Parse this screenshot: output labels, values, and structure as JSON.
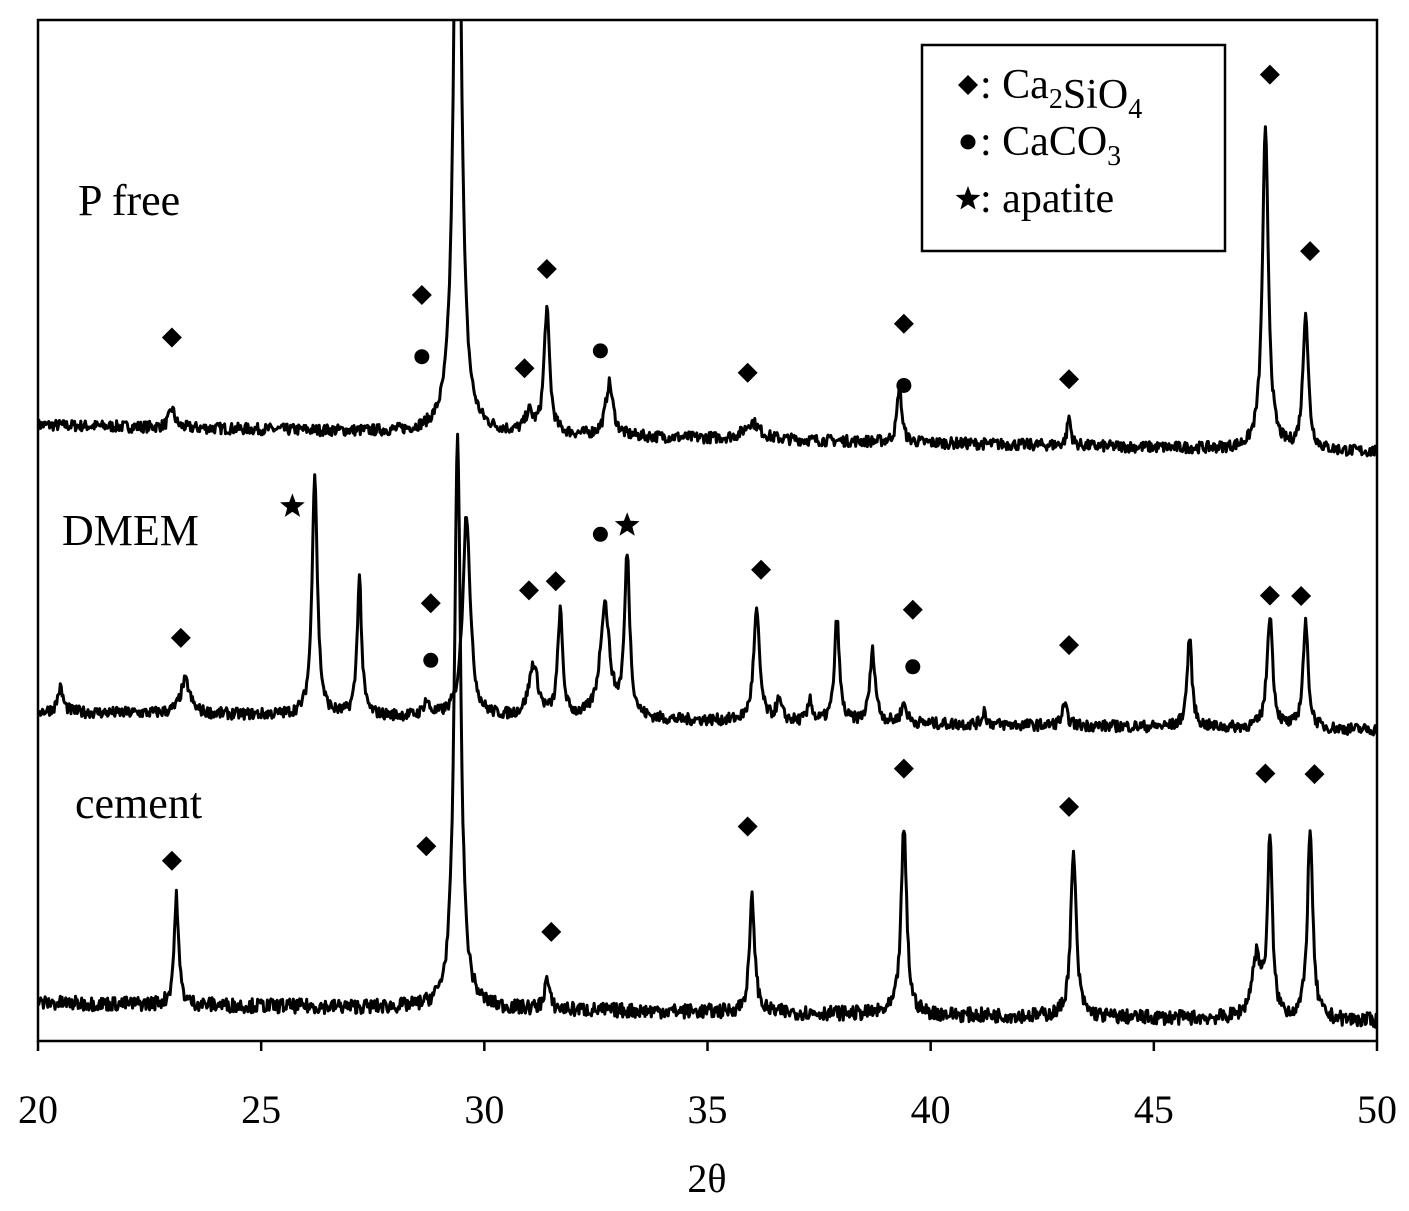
{
  "chart_data": {
    "type": "line",
    "title": "",
    "xlabel": "2θ",
    "ylabel": "",
    "xlim": [
      20,
      50
    ],
    "grid": false,
    "x_ticks": [
      "20",
      "25",
      "30",
      "35",
      "40",
      "45",
      "50"
    ],
    "legend": {
      "placement": "top-right",
      "entries": [
        {
          "marker": "diamond",
          "prefix": ": ",
          "name": "Ca",
          "sub1": "2",
          "name2": "SiO",
          "sub2": "4"
        },
        {
          "marker": "circle",
          "prefix": ": ",
          "name": "CaCO",
          "sub1": "3",
          "name2": "",
          "sub2": ""
        },
        {
          "marker": "star",
          "prefix": ": ",
          "name": "apatite",
          "sub1": "",
          "name2": "",
          "sub2": ""
        }
      ]
    },
    "series": [
      {
        "name": "P free",
        "peaks": [
          {
            "x": 23.0,
            "h": 0.2,
            "w": 0.15
          },
          {
            "x": 29.4,
            "h": 8.0,
            "w": 0.18
          },
          {
            "x": 31.4,
            "h": 1.3,
            "w": 0.15
          },
          {
            "x": 31.0,
            "h": 0.2,
            "w": 0.2
          },
          {
            "x": 32.8,
            "h": 0.55,
            "w": 0.2
          },
          {
            "x": 36.0,
            "h": 0.18,
            "w": 0.4
          },
          {
            "x": 39.3,
            "h": 0.6,
            "w": 0.12
          },
          {
            "x": 43.1,
            "h": 0.3,
            "w": 0.1
          },
          {
            "x": 47.5,
            "h": 3.35,
            "w": 0.16
          },
          {
            "x": 48.4,
            "h": 1.45,
            "w": 0.14
          }
        ],
        "markers": [
          {
            "type": "diamond",
            "x": 23.0,
            "y": 0.95
          },
          {
            "type": "diamond",
            "x": 28.6,
            "y": 1.45
          },
          {
            "type": "circle",
            "x": 28.6,
            "y": 0.8
          },
          {
            "type": "diamond",
            "x": 31.4,
            "y": 1.75
          },
          {
            "type": "diamond",
            "x": 30.9,
            "y": 0.7
          },
          {
            "type": "circle",
            "x": 32.6,
            "y": 0.9
          },
          {
            "type": "diamond",
            "x": 35.9,
            "y": 0.7
          },
          {
            "type": "diamond",
            "x": 39.4,
            "y": 1.25
          },
          {
            "type": "circle",
            "x": 39.4,
            "y": 0.6
          },
          {
            "type": "diamond",
            "x": 43.1,
            "y": 0.7
          },
          {
            "type": "diamond",
            "x": 47.6,
            "y": 3.95
          },
          {
            "type": "diamond",
            "x": 48.5,
            "y": 2.1
          }
        ]
      },
      {
        "name": "DMEM",
        "peaks": [
          {
            "x": 20.5,
            "h": 0.25,
            "w": 0.15
          },
          {
            "x": 23.3,
            "h": 0.35,
            "w": 0.25
          },
          {
            "x": 26.2,
            "h": 2.55,
            "w": 0.14
          },
          {
            "x": 27.2,
            "h": 1.45,
            "w": 0.12
          },
          {
            "x": 28.7,
            "h": 0.15,
            "w": 0.15
          },
          {
            "x": 29.6,
            "h": 2.15,
            "w": 0.2
          },
          {
            "x": 31.1,
            "h": 0.55,
            "w": 0.25
          },
          {
            "x": 31.7,
            "h": 1.1,
            "w": 0.13
          },
          {
            "x": 32.7,
            "h": 1.2,
            "w": 0.25
          },
          {
            "x": 33.2,
            "h": 1.7,
            "w": 0.14
          },
          {
            "x": 36.1,
            "h": 1.15,
            "w": 0.16
          },
          {
            "x": 36.6,
            "h": 0.2,
            "w": 0.15
          },
          {
            "x": 37.3,
            "h": 0.25,
            "w": 0.1
          },
          {
            "x": 37.9,
            "h": 1.1,
            "w": 0.13
          },
          {
            "x": 38.7,
            "h": 0.75,
            "w": 0.15
          },
          {
            "x": 39.4,
            "h": 0.2,
            "w": 0.15
          },
          {
            "x": 41.2,
            "h": 0.15,
            "w": 0.1
          },
          {
            "x": 43.0,
            "h": 0.2,
            "w": 0.15
          },
          {
            "x": 45.8,
            "h": 0.95,
            "w": 0.13
          },
          {
            "x": 47.6,
            "h": 1.2,
            "w": 0.15
          },
          {
            "x": 48.4,
            "h": 1.1,
            "w": 0.14
          }
        ],
        "markers": [
          {
            "type": "star",
            "x": 25.7,
            "y": 2.2
          },
          {
            "type": "diamond",
            "x": 23.2,
            "y": 0.8
          },
          {
            "type": "diamond",
            "x": 28.8,
            "y": 1.2
          },
          {
            "type": "circle",
            "x": 28.8,
            "y": 0.6
          },
          {
            "type": "diamond",
            "x": 31.0,
            "y": 1.35
          },
          {
            "type": "diamond",
            "x": 31.6,
            "y": 1.45
          },
          {
            "type": "circle",
            "x": 32.6,
            "y": 1.95
          },
          {
            "type": "star",
            "x": 33.2,
            "y": 2.05
          },
          {
            "type": "diamond",
            "x": 36.2,
            "y": 1.6
          },
          {
            "type": "diamond",
            "x": 39.6,
            "y": 1.2
          },
          {
            "type": "circle",
            "x": 39.6,
            "y": 0.6
          },
          {
            "type": "diamond",
            "x": 43.1,
            "y": 0.85
          },
          {
            "type": "diamond",
            "x": 47.6,
            "y": 1.4
          },
          {
            "type": "diamond",
            "x": 48.3,
            "y": 1.4
          }
        ]
      },
      {
        "name": "cement",
        "peaks": [
          {
            "x": 23.1,
            "h": 0.9,
            "w": 0.12
          },
          {
            "x": 29.4,
            "h": 4.8,
            "w": 0.17
          },
          {
            "x": 31.4,
            "h": 0.25,
            "w": 0.13
          },
          {
            "x": 36.0,
            "h": 0.95,
            "w": 0.14
          },
          {
            "x": 39.4,
            "h": 1.55,
            "w": 0.15
          },
          {
            "x": 43.2,
            "h": 1.35,
            "w": 0.15
          },
          {
            "x": 47.3,
            "h": 0.5,
            "w": 0.25
          },
          {
            "x": 47.6,
            "h": 1.45,
            "w": 0.13
          },
          {
            "x": 48.5,
            "h": 1.6,
            "w": 0.14
          }
        ],
        "markers": [
          {
            "type": "diamond",
            "x": 23.0,
            "y": 1.2
          },
          {
            "type": "diamond",
            "x": 28.7,
            "y": 1.35
          },
          {
            "type": "diamond",
            "x": 31.5,
            "y": 0.65
          },
          {
            "type": "diamond",
            "x": 35.9,
            "y": 1.55
          },
          {
            "type": "diamond",
            "x": 39.4,
            "y": 2.05
          },
          {
            "type": "diamond",
            "x": 43.1,
            "y": 1.75
          },
          {
            "type": "diamond",
            "x": 47.5,
            "y": 2.05
          },
          {
            "type": "diamond",
            "x": 48.6,
            "y": 2.05
          }
        ]
      }
    ]
  }
}
